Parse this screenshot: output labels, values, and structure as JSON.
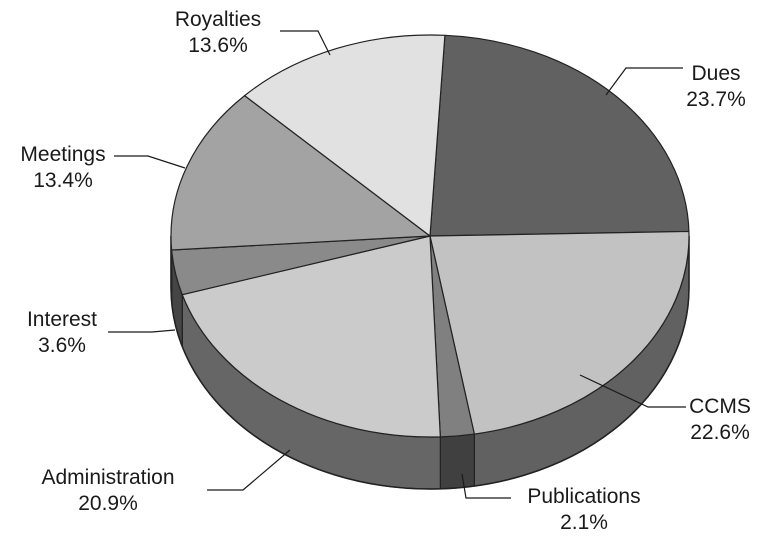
{
  "chart_data": {
    "type": "pie",
    "title": "",
    "legend": "none",
    "slices": [
      {
        "label": "Dues",
        "value": 23.7,
        "value_label": "23.7%",
        "color": "#616161"
      },
      {
        "label": "CCMS",
        "value": 22.6,
        "value_label": "22.6%",
        "color": "#c2c2c2"
      },
      {
        "label": "Publications",
        "value": 2.1,
        "value_label": "2.1%",
        "color": "#808080"
      },
      {
        "label": "Administration",
        "value": 20.9,
        "value_label": "20.9%",
        "color": "#cbcbcb"
      },
      {
        "label": "Interest",
        "value": 3.6,
        "value_label": "3.6%",
        "color": "#8a8a8a"
      },
      {
        "label": "Meetings",
        "value": 13.4,
        "value_label": "13.4%",
        "color": "#a3a3a3"
      },
      {
        "label": "Royalties",
        "value": 13.6,
        "value_label": "13.6%",
        "color": "#e1e1e1"
      }
    ]
  }
}
